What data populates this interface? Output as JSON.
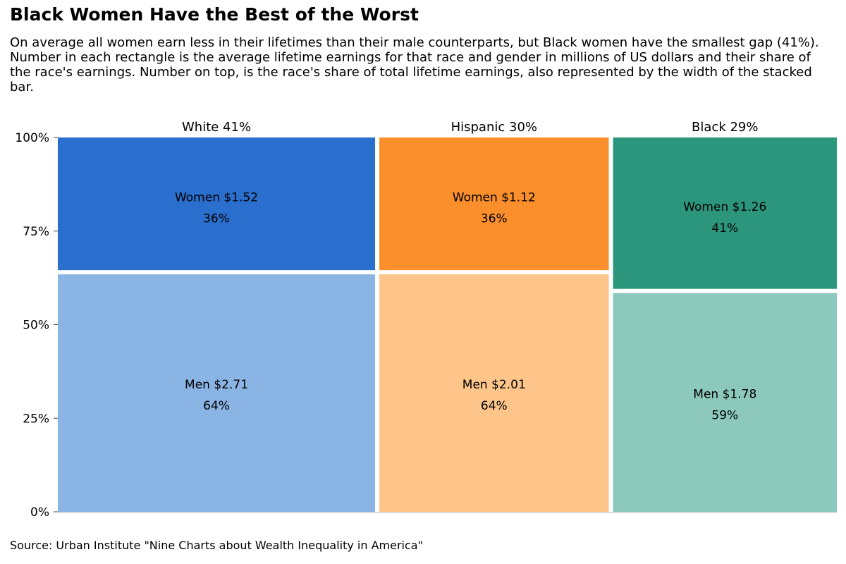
{
  "title": "Black Women Have the Best of the Worst",
  "subtitle": "On average all women earn less in their lifetimes than their male counterparts, but Black women have the smallest gap (41%). Number in each rectangle is the average lifetime earnings for that race and gender in millions of US dollars and their share of the race's earnings. Number on top, is the race's share of total lifetime earnings, also represented by the width of the stacked bar.",
  "source": "Source: Urban Institute \"Nine Charts about Wealth Inequality in America\"",
  "chart_data": {
    "type": "bar",
    "subtype": "mosaic (variable-width stacked 100% bar)",
    "ylim": [
      0,
      100
    ],
    "y_ticks": [
      "0%",
      "25%",
      "50%",
      "75%",
      "100%"
    ],
    "categories": [
      {
        "name": "White",
        "label": "White 41%",
        "share": 41,
        "segments": [
          {
            "name": "Men",
            "label1": "Men $2.71",
            "label2": "64%",
            "value": 2.71,
            "percent": 64,
            "color": "#8ab4e4"
          },
          {
            "name": "Women",
            "label1": "Women $1.52",
            "label2": "36%",
            "value": 1.52,
            "percent": 36,
            "color": "#2a6fce"
          }
        ]
      },
      {
        "name": "Hispanic",
        "label": "Hispanic 30%",
        "share": 30,
        "segments": [
          {
            "name": "Men",
            "label1": "Men $2.01",
            "label2": "64%",
            "value": 2.01,
            "percent": 64,
            "color": "#fdc58a"
          },
          {
            "name": "Women",
            "label1": "Women $1.12",
            "label2": "36%",
            "value": 1.12,
            "percent": 36,
            "color": "#fb8f2c"
          }
        ]
      },
      {
        "name": "Black",
        "label": "Black 29%",
        "share": 29,
        "segments": [
          {
            "name": "Men",
            "label1": "Men $1.78",
            "label2": "59%",
            "value": 1.78,
            "percent": 59,
            "color": "#8cc8bc"
          },
          {
            "name": "Women",
            "label1": "Women $1.26",
            "label2": "41%",
            "value": 1.26,
            "percent": 41,
            "color": "#2c967c"
          }
        ]
      }
    ]
  }
}
